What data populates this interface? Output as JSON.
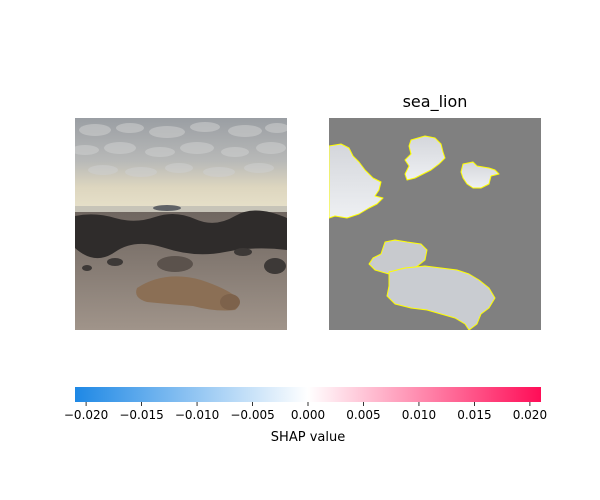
{
  "chart_data": {
    "type": "heatmap",
    "panels": [
      {
        "name": "original-image",
        "title": ""
      },
      {
        "name": "shap-overlay",
        "title": "sea_lion"
      }
    ],
    "colorbar": {
      "label": "SHAP value",
      "ticks": [
        -0.02,
        -0.015,
        -0.01,
        -0.005,
        0.0,
        0.005,
        0.01,
        0.015,
        0.02
      ],
      "tick_labels": [
        "−0.020",
        "−0.015",
        "−0.010",
        "−0.005",
        "0.000",
        "0.005",
        "0.010",
        "0.015",
        "0.020"
      ],
      "range": [
        -0.021,
        0.021
      ],
      "colors": {
        "negative": "#1e88e5",
        "zero": "#ffffff",
        "positive": "#ff0d57"
      }
    },
    "colors": {
      "mask_gray": "#808080",
      "segment_outline": "#ffff00"
    }
  }
}
